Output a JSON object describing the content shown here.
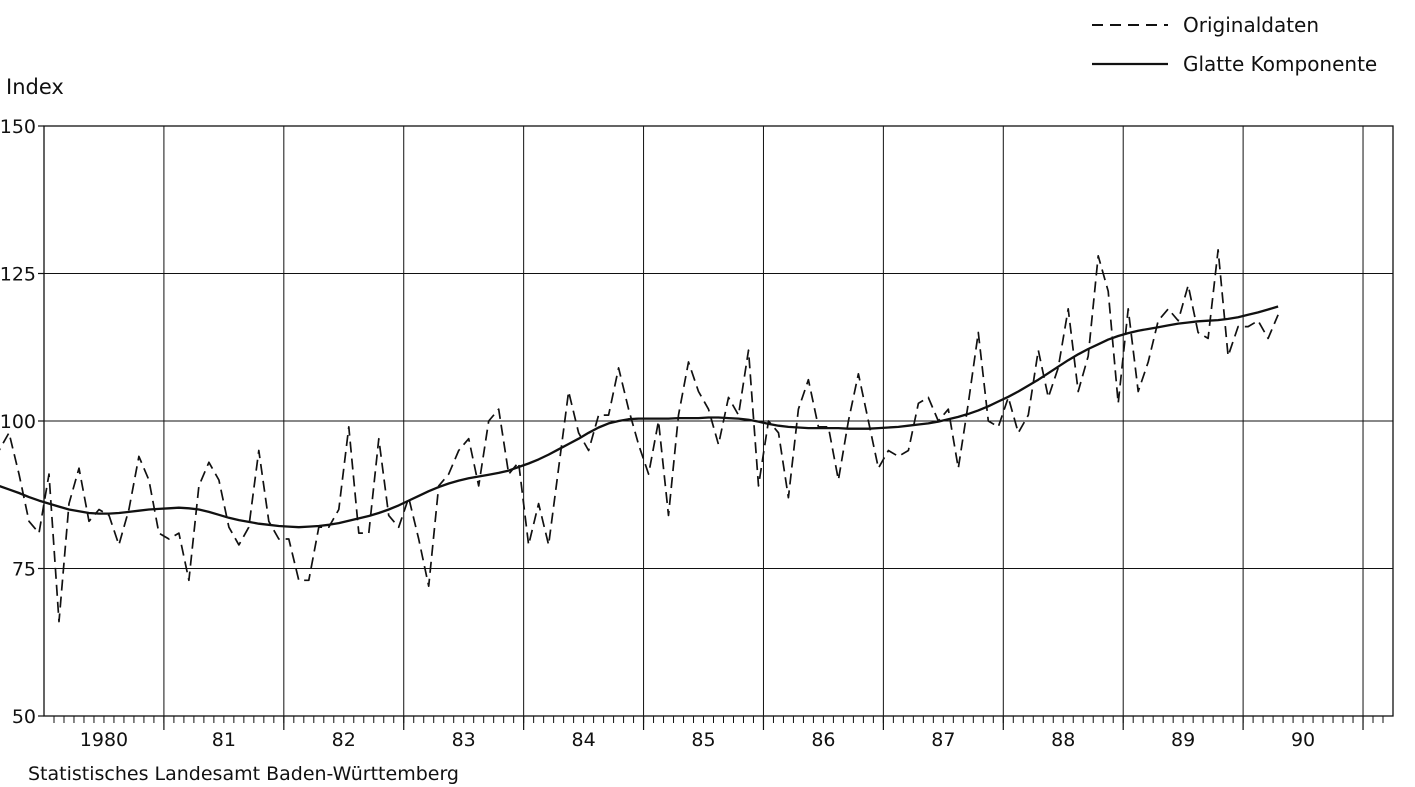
{
  "chart_data": {
    "type": "line",
    "ylabel": "Index",
    "ylim": [
      50,
      150
    ],
    "yticks": [
      50,
      75,
      100,
      125,
      150
    ],
    "x_start_year": 1980,
    "x_range": [
      1979.5,
      1990.75
    ],
    "year_labels": [
      "1980",
      "81",
      "82",
      "83",
      "84",
      "85",
      "86",
      "87",
      "88",
      "89",
      "90"
    ],
    "x_frequency": "monthly",
    "grid": true,
    "legend_position": "top-right",
    "footer": "Statistisches Landesamt Baden-Württemberg",
    "series": [
      {
        "name": "Originaldaten",
        "style": "dashed",
        "x_start": "1979-07",
        "values": [
          91,
          95,
          98,
          91,
          83,
          81,
          91,
          66,
          86,
          92,
          83,
          85,
          84,
          79,
          85,
          94,
          90,
          81,
          80,
          81,
          73,
          89,
          93,
          90,
          82,
          79,
          82,
          95,
          83,
          80,
          80,
          73,
          73,
          82,
          82,
          85,
          99,
          81,
          81,
          97,
          84,
          82,
          87,
          80,
          72,
          89,
          91,
          95,
          97,
          89,
          100,
          102,
          91,
          93,
          79,
          86,
          79,
          92,
          105,
          98,
          95,
          101,
          101,
          109,
          102,
          96,
          91,
          100,
          84,
          101,
          110,
          105,
          102,
          96,
          104,
          101,
          112,
          89,
          100,
          98,
          87,
          102,
          107,
          99,
          99,
          90,
          100,
          108,
          100,
          92,
          95,
          94,
          95,
          103,
          104,
          100,
          102,
          92,
          103,
          115,
          100,
          99,
          104,
          98,
          101,
          112,
          104,
          109,
          119,
          105,
          111,
          128,
          122,
          103,
          119,
          105,
          110,
          117,
          119,
          117,
          123,
          115,
          114,
          129,
          111,
          116,
          116,
          117,
          114,
          118
        ]
      },
      {
        "name": "Glatte Komponente",
        "style": "solid",
        "x_start": "1979-07",
        "values": [
          89.5,
          89.0,
          88.4,
          87.8,
          87.1,
          86.5,
          86.0,
          85.5,
          85.0,
          84.7,
          84.4,
          84.3,
          84.3,
          84.4,
          84.6,
          84.8,
          85.0,
          85.1,
          85.2,
          85.3,
          85.2,
          85.0,
          84.6,
          84.1,
          83.6,
          83.2,
          82.9,
          82.6,
          82.4,
          82.2,
          82.1,
          82.0,
          82.1,
          82.2,
          82.4,
          82.7,
          83.1,
          83.5,
          83.9,
          84.4,
          85.0,
          85.7,
          86.5,
          87.3,
          88.1,
          88.8,
          89.4,
          89.9,
          90.3,
          90.6,
          90.9,
          91.2,
          91.6,
          92.2,
          92.8,
          93.5,
          94.3,
          95.2,
          96.1,
          97.0,
          98.0,
          98.9,
          99.6,
          100.0,
          100.3,
          100.4,
          100.4,
          100.4,
          100.4,
          100.5,
          100.5,
          100.5,
          100.6,
          100.6,
          100.5,
          100.4,
          100.2,
          99.9,
          99.5,
          99.2,
          99.0,
          98.9,
          98.8,
          98.8,
          98.8,
          98.8,
          98.7,
          98.7,
          98.7,
          98.8,
          98.9,
          99.0,
          99.2,
          99.4,
          99.6,
          99.9,
          100.3,
          100.7,
          101.2,
          101.8,
          102.5,
          103.3,
          104.1,
          105.0,
          106.0,
          107.0,
          108.1,
          109.2,
          110.3,
          111.3,
          112.2,
          113.0,
          113.8,
          114.4,
          114.9,
          115.3,
          115.6,
          115.9,
          116.2,
          116.5,
          116.7,
          116.9,
          117.0,
          117.1,
          117.3,
          117.6,
          118.0,
          118.4,
          118.9,
          119.4
        ]
      }
    ]
  }
}
